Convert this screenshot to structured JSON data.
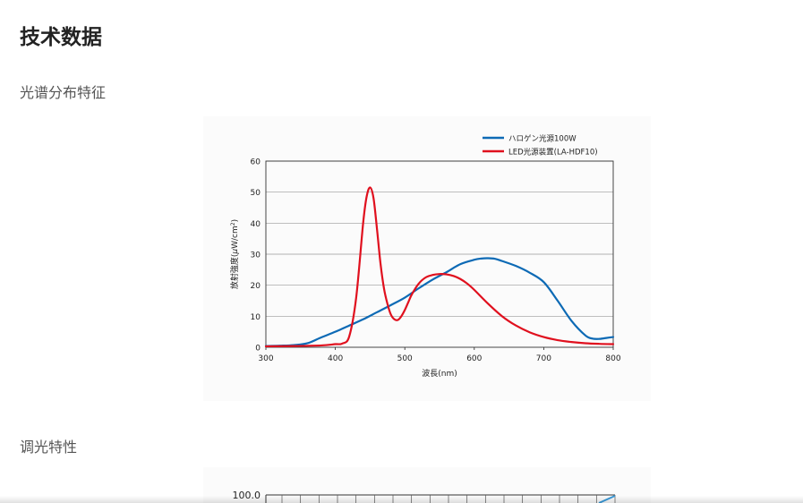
{
  "page": {
    "title": "技术数据",
    "section_spectrum": "光谱分布特征",
    "section_dimming": "调光特性"
  },
  "chart_data": [
    {
      "type": "line",
      "title": "",
      "xlabel": "波長(nm)",
      "ylabel_prefix": "放射強度(",
      "ylabel_mu": "μ",
      "ylabel_unit": "W/cm",
      "ylabel_sup": "2",
      "ylabel_suffix": ")",
      "xlim": [
        300,
        800
      ],
      "ylim": [
        0,
        60
      ],
      "xticks": [
        300,
        400,
        500,
        600,
        700,
        800
      ],
      "yticks": [
        0,
        10,
        20,
        30,
        40,
        50,
        60
      ],
      "grid": true,
      "legend_position": "top-right",
      "series": [
        {
          "name": "ハロゲン光源100W",
          "color": "#0d6ab5",
          "x": [
            300,
            320,
            340,
            360,
            380,
            400,
            420,
            440,
            460,
            480,
            500,
            520,
            540,
            560,
            580,
            600,
            610,
            620,
            630,
            640,
            660,
            680,
            700,
            720,
            740,
            760,
            770,
            780,
            790,
            800
          ],
          "y": [
            0.4,
            0.5,
            0.7,
            1.3,
            3.2,
            5,
            7,
            9,
            11.3,
            13.6,
            16,
            19,
            21.8,
            24.2,
            26.8,
            28.2,
            28.6,
            28.7,
            28.5,
            27.8,
            26.2,
            24,
            21,
            15,
            8.5,
            3.8,
            2.8,
            2.7,
            3,
            3.3
          ]
        },
        {
          "name": "LED光源装置(LA-HDF10)",
          "color": "#e0101e",
          "x": [
            300,
            340,
            380,
            400,
            410,
            420,
            430,
            440,
            445,
            450,
            455,
            460,
            465,
            470,
            475,
            480,
            485,
            490,
            495,
            500,
            505,
            510,
            520,
            530,
            540,
            550,
            560,
            570,
            580,
            590,
            600,
            620,
            640,
            660,
            680,
            700,
            720,
            740,
            760,
            780,
            800
          ],
          "y": [
            0.3,
            0.4,
            0.6,
            1,
            1.2,
            3.5,
            16,
            40,
            48.5,
            51.5,
            48,
            38,
            27,
            19,
            14,
            10.5,
            9,
            8.8,
            10,
            12,
            14.5,
            17,
            20.5,
            22.5,
            23.3,
            23.6,
            23.5,
            23,
            22,
            20.5,
            18.5,
            14,
            10,
            7,
            4.8,
            3.3,
            2.3,
            1.7,
            1.3,
            1.1,
            1
          ]
        }
      ]
    },
    {
      "type": "line",
      "title": "",
      "ytick_top": "100.0",
      "series_color": "#3a9ad9"
    }
  ]
}
